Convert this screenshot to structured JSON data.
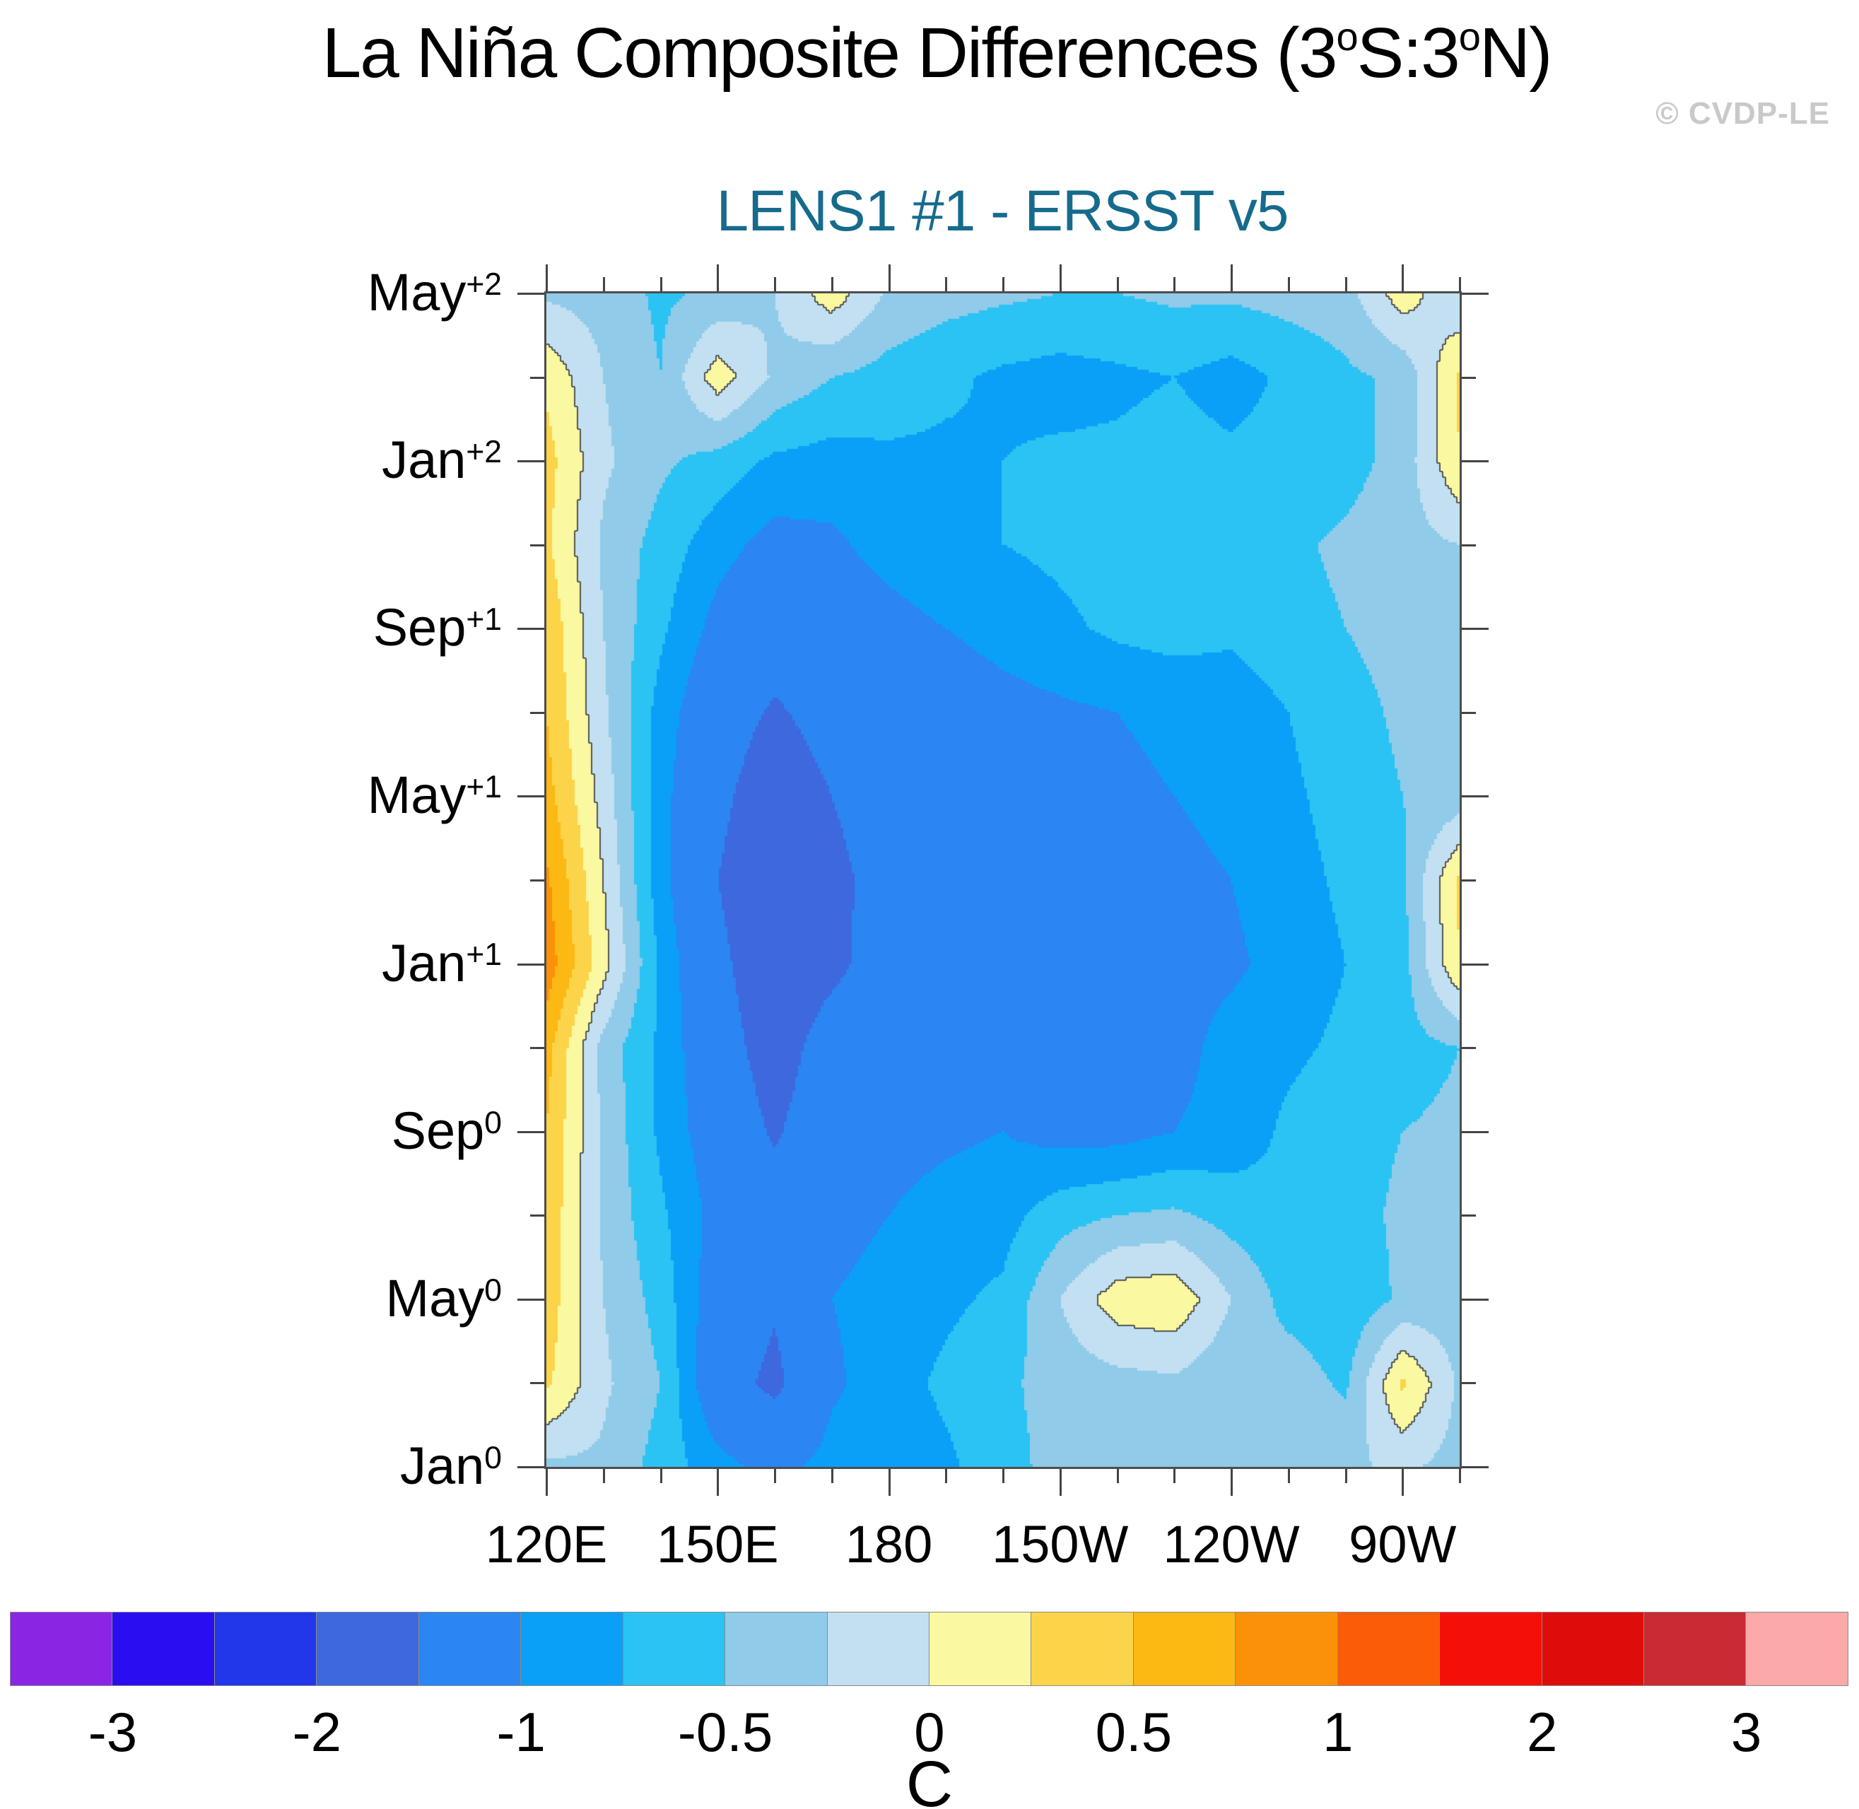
{
  "header": {
    "title_plain": "La Niña Composite Differences (3°S:3°N)",
    "title_parts": [
      {
        "t": "La Niña Composite Differences (3"
      },
      {
        "t": "o",
        "sup": true
      },
      {
        "t": "S:3"
      },
      {
        "t": "o",
        "sup": true
      },
      {
        "t": "N)"
      }
    ],
    "subtitle": "LENS1 #1 - ERSST v5",
    "watermark": "© CVDP-LE"
  },
  "colors": {
    "subtitle": "#166b8c",
    "watermark": "#c9c9c9",
    "axis": "#444444",
    "plot_border": "#4d4d4d",
    "zero_contour": "#555555",
    "background": "#ffffff"
  },
  "chart_data": {
    "type": "heatmap",
    "subtype": "filled-contour-hovmoller",
    "title": "La Niña Composite Differences (3°S:3°N)",
    "subtitle": "LENS1 #1 - ERSST v5",
    "units": "C",
    "xlabel": "",
    "ylabel": "",
    "x_axis": {
      "range_deg_east": [
        120,
        280
      ],
      "major_tick_degs": [
        120,
        150,
        180,
        210,
        240,
        270
      ],
      "minor_step_deg": 10,
      "tick_labels": [
        {
          "deg": 120,
          "label": "120E"
        },
        {
          "deg": 150,
          "label": "150E"
        },
        {
          "deg": 180,
          "label": "180"
        },
        {
          "deg": 210,
          "label": "150W"
        },
        {
          "deg": 240,
          "label": "120W"
        },
        {
          "deg": 270,
          "label": "90W"
        }
      ]
    },
    "y_axis": {
      "range_months": [
        0,
        28
      ],
      "major_tick_every_months": 4,
      "minor_tick_every_months": 2,
      "tick_labels": [
        {
          "month": 0,
          "base": "Jan",
          "sup": "0"
        },
        {
          "month": 4,
          "base": "May",
          "sup": "0"
        },
        {
          "month": 8,
          "base": "Sep",
          "sup": "0"
        },
        {
          "month": 12,
          "base": "Jan",
          "sup": "+1"
        },
        {
          "month": 16,
          "base": "May",
          "sup": "+1"
        },
        {
          "month": 20,
          "base": "Sep",
          "sup": "+1"
        },
        {
          "month": 24,
          "base": "Jan",
          "sup": "+2"
        },
        {
          "month": 28,
          "base": "May",
          "sup": "+2"
        }
      ]
    },
    "levels": [
      -3,
      -2.5,
      -2,
      -1.5,
      -1,
      -0.75,
      -0.5,
      -0.25,
      0,
      0.25,
      0.5,
      0.75,
      1,
      1.5,
      2,
      2.5,
      3
    ],
    "palette": [
      "#8a26e3",
      "#2b0df2",
      "#2137e9",
      "#3d68de",
      "#2b85f2",
      "#0aa0f7",
      "#2bc3f3",
      "#90cbe9",
      "#c2e0f1",
      "#faf8a0",
      "#fcd449",
      "#fcb813",
      "#fb9109",
      "#fa5c07",
      "#f41009",
      "#df0c0c",
      "#c92a33",
      "#fba9a9"
    ],
    "colorbar_labels": [
      {
        "boundary_index": 1,
        "label": "-3"
      },
      {
        "boundary_index": 3,
        "label": "-2"
      },
      {
        "boundary_index": 5,
        "label": "-1"
      },
      {
        "boundary_index": 7,
        "label": "-0.5"
      },
      {
        "boundary_index": 9,
        "label": "0"
      },
      {
        "boundary_index": 11,
        "label": "0.5"
      },
      {
        "boundary_index": 13,
        "label": "1"
      },
      {
        "boundary_index": 15,
        "label": "2"
      },
      {
        "boundary_index": 17,
        "label": "3"
      }
    ],
    "grid": {
      "lons_deg_east": [
        120,
        130,
        140,
        150,
        160,
        170,
        180,
        190,
        200,
        210,
        220,
        230,
        240,
        250,
        260,
        270,
        280
      ],
      "time_months_from_jan0": [
        0,
        2,
        4,
        6,
        8,
        10,
        12,
        14,
        16,
        18,
        20,
        22,
        24,
        26,
        28
      ],
      "values_c": [
        [
          -0.3,
          -0.3,
          -0.6,
          -0.9,
          -1.1,
          -0.9,
          -0.9,
          -0.8,
          -0.6,
          -0.4,
          -0.35,
          -0.3,
          -0.35,
          -0.25,
          -0.3,
          -0.2,
          -0.35
        ],
        [
          0.3,
          -0.2,
          -0.5,
          -1.3,
          -1.6,
          -1.05,
          -0.85,
          -0.7,
          -0.55,
          -0.4,
          -0.35,
          -0.3,
          -0.45,
          -0.35,
          -0.55,
          0.3,
          -0.3
        ],
        [
          0.4,
          -0.25,
          -0.6,
          -1.2,
          -1.45,
          -1.0,
          -0.9,
          -0.8,
          -0.7,
          -0.25,
          0.15,
          0.2,
          -0.25,
          -0.6,
          -0.7,
          -0.45,
          -0.4
        ],
        [
          0.45,
          -0.3,
          -0.7,
          -1.1,
          -1.3,
          -1.1,
          -1.0,
          -0.9,
          -0.85,
          -0.6,
          -0.5,
          -0.45,
          -0.6,
          -0.7,
          -0.6,
          -0.45,
          -0.35
        ],
        [
          0.5,
          -0.3,
          -0.8,
          -1.2,
          -1.55,
          -1.2,
          -1.1,
          -1.05,
          -1.0,
          -1.1,
          -1.1,
          -1.0,
          -0.9,
          -0.7,
          -0.6,
          -0.5,
          -0.45
        ],
        [
          0.6,
          -0.35,
          -0.8,
          -1.3,
          -1.7,
          -1.3,
          -1.2,
          -1.1,
          -1.2,
          -1.25,
          -1.2,
          -1.1,
          -0.9,
          -0.8,
          -0.7,
          -0.6,
          -0.5
        ],
        [
          0.9,
          0.1,
          -0.8,
          -1.4,
          -1.8,
          -1.6,
          -1.3,
          -1.2,
          -1.2,
          -1.2,
          -1.15,
          -1.1,
          -1.05,
          -0.9,
          -0.75,
          -0.6,
          0.25
        ],
        [
          0.8,
          0.0,
          -0.9,
          -1.5,
          -1.85,
          -1.6,
          -1.35,
          -1.25,
          -1.2,
          -1.15,
          -1.1,
          -1.05,
          -1.0,
          -0.85,
          -0.7,
          -0.55,
          0.3
        ],
        [
          0.6,
          -0.1,
          -0.9,
          -1.4,
          -1.75,
          -1.5,
          -1.3,
          -1.25,
          -1.2,
          -1.1,
          -1.05,
          -1.0,
          -0.95,
          -0.8,
          -0.65,
          -0.5,
          -0.4
        ],
        [
          0.5,
          -0.2,
          -0.85,
          -1.3,
          -1.55,
          -1.35,
          -1.25,
          -1.2,
          -1.1,
          -1.05,
          -1.0,
          -0.95,
          -0.9,
          -0.75,
          -0.6,
          -0.45,
          -0.35
        ],
        [
          0.45,
          -0.25,
          -0.7,
          -1.1,
          -1.3,
          -1.2,
          -1.1,
          -1.0,
          -0.9,
          -0.8,
          -0.7,
          -0.65,
          -0.7,
          -0.6,
          -0.5,
          -0.4,
          -0.3
        ],
        [
          0.3,
          -0.3,
          -0.6,
          -0.9,
          -1.1,
          -1.05,
          -0.9,
          -0.8,
          -0.75,
          -0.7,
          -0.65,
          -0.6,
          -0.65,
          -0.55,
          -0.45,
          -0.35,
          -0.25
        ],
        [
          0.35,
          -0.2,
          -0.45,
          -0.6,
          -0.8,
          -0.85,
          -0.8,
          -0.8,
          -0.75,
          -0.7,
          -0.7,
          -0.65,
          -0.7,
          -0.65,
          -0.6,
          -0.4,
          0.25
        ],
        [
          0.2,
          -0.25,
          -0.5,
          0.15,
          -0.3,
          -0.5,
          -0.6,
          -0.7,
          -0.8,
          -0.85,
          -0.8,
          -0.75,
          -0.85,
          -0.7,
          -0.55,
          -0.45,
          0.3
        ],
        [
          -0.3,
          -0.35,
          -0.55,
          -0.45,
          -0.25,
          0.15,
          -0.3,
          -0.4,
          -0.45,
          -0.5,
          -0.5,
          -0.45,
          -0.45,
          -0.4,
          -0.35,
          0.15,
          -0.25
        ]
      ]
    },
    "legend_position": "bottom",
    "grid_lines": false
  }
}
